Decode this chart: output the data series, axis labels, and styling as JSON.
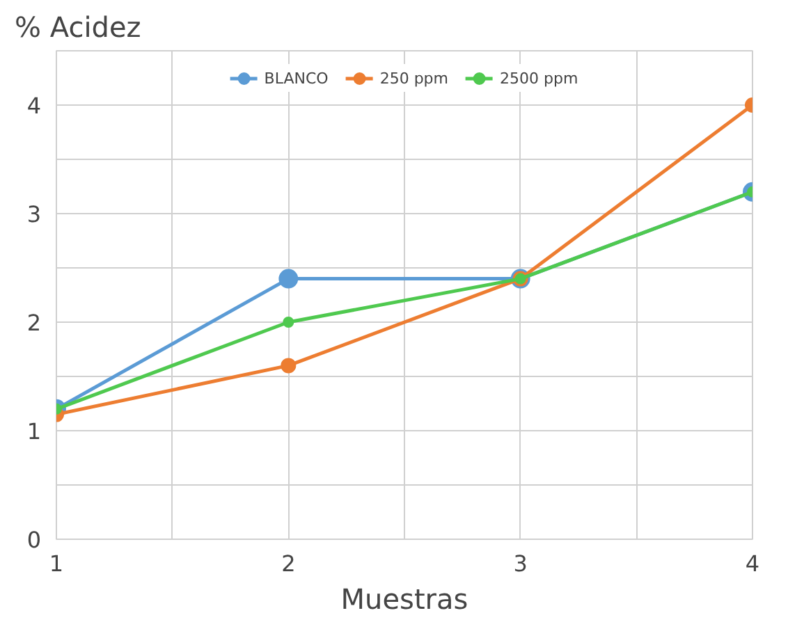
{
  "chart_data": {
    "type": "line",
    "ylabel": "% Acidez",
    "xlabel": "Muestras",
    "x": [
      1,
      2,
      3,
      4
    ],
    "xlim": [
      1,
      4
    ],
    "xticks": [
      1,
      {
        "value": 1.5,
        "label": null
      },
      2,
      {
        "value": 2.5,
        "label": null
      },
      3,
      {
        "value": 3.5,
        "label": null
      },
      4
    ],
    "ylim": [
      0,
      4.5
    ],
    "yticks": [
      0,
      {
        "value": 0.5,
        "label": null
      },
      1,
      {
        "value": 1.5,
        "label": null
      },
      2,
      {
        "value": 2.5,
        "label": null
      },
      3,
      {
        "value": 3.5,
        "label": null
      },
      4,
      {
        "value": 4.5,
        "label": null
      }
    ],
    "grid": true,
    "legend": "top",
    "marker": "circle",
    "series": [
      {
        "name": "BLANCO",
        "color": "#5b9bd5",
        "values": [
          1.2,
          2.4,
          2.4,
          3.2
        ]
      },
      {
        "name": "250 ppm",
        "color": "#ed7d31",
        "values": [
          1.15,
          1.6,
          2.4,
          4.0
        ]
      },
      {
        "name": "2500 ppm",
        "color": "#4fc94f",
        "values": [
          1.2,
          2.0,
          2.4,
          3.2
        ]
      }
    ]
  }
}
